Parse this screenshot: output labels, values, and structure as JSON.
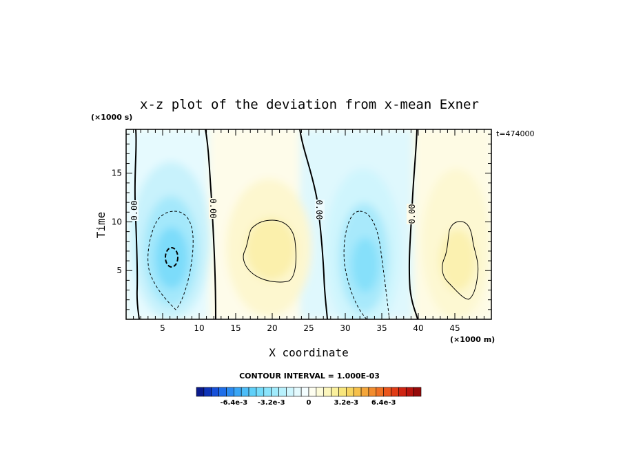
{
  "chart_data": {
    "type": "heatmap",
    "title": "x-z plot of the deviation from x-mean Exner",
    "xlabel": "X coordinate",
    "ylabel": "Time",
    "x_unit": "(×1000 m)",
    "y_unit": "(×1000 s)",
    "time_stamp": "t=474000",
    "xlim": [
      0,
      50
    ],
    "ylim": [
      0,
      19.5
    ],
    "x_ticks": [
      "5",
      "10",
      "15",
      "20",
      "25",
      "30",
      "35",
      "40",
      "45"
    ],
    "y_ticks": [
      "5",
      "10",
      "15"
    ],
    "contour_interval": "CONTOUR INTERVAL = 1.000E-03",
    "contour_labels": [
      "0.00",
      "0.00",
      "0.00",
      "0.00"
    ],
    "colorbar": {
      "range": [
        -0.0096,
        0.0096
      ],
      "tick_labels": [
        "-6.4e-3",
        "-3.2e-3",
        "0",
        "3.2e-3",
        "6.4e-3"
      ],
      "tick_values": [
        -0.0064,
        -0.0032,
        0,
        0.0032,
        0.0064
      ],
      "colors_negative": [
        "#0a1a8c",
        "#0e34b8",
        "#1750d8",
        "#1f6ee8",
        "#2b8af0",
        "#3aa6f5",
        "#4cbcf7",
        "#5fd0f9",
        "#74dcfb",
        "#8ae4fc",
        "#a0ebfc",
        "#b8f1fd",
        "#cff6fe",
        "#e4fafe",
        "#f3fdff"
      ],
      "colors_positive": [
        "#fefef0",
        "#fdfbd8",
        "#fcf6bc",
        "#faf09c",
        "#f8e67c",
        "#f7d560",
        "#f6c04a",
        "#f4a63a",
        "#f28c2e",
        "#ef7124",
        "#ea561c",
        "#e03c16",
        "#cf2412",
        "#b7140e",
        "#960a0a"
      ]
    },
    "cells": [
      {
        "x": 6.2,
        "y": 7.0,
        "value": -0.0035
      },
      {
        "x": 32.5,
        "y": 6.0,
        "value": -0.0031
      },
      {
        "x": 19.8,
        "y": 7.5,
        "value": 0.0018
      },
      {
        "x": 45.5,
        "y": 6.0,
        "value": 0.0016
      },
      {
        "x": 3.0,
        "y": 17.0,
        "value": -0.0005
      },
      {
        "x": 30.0,
        "y": 17.0,
        "value": -0.0006
      },
      {
        "x": 20.0,
        "y": 17.0,
        "value": 0.0005
      },
      {
        "x": 46.0,
        "y": 17.0,
        "value": 0.0005
      }
    ]
  }
}
